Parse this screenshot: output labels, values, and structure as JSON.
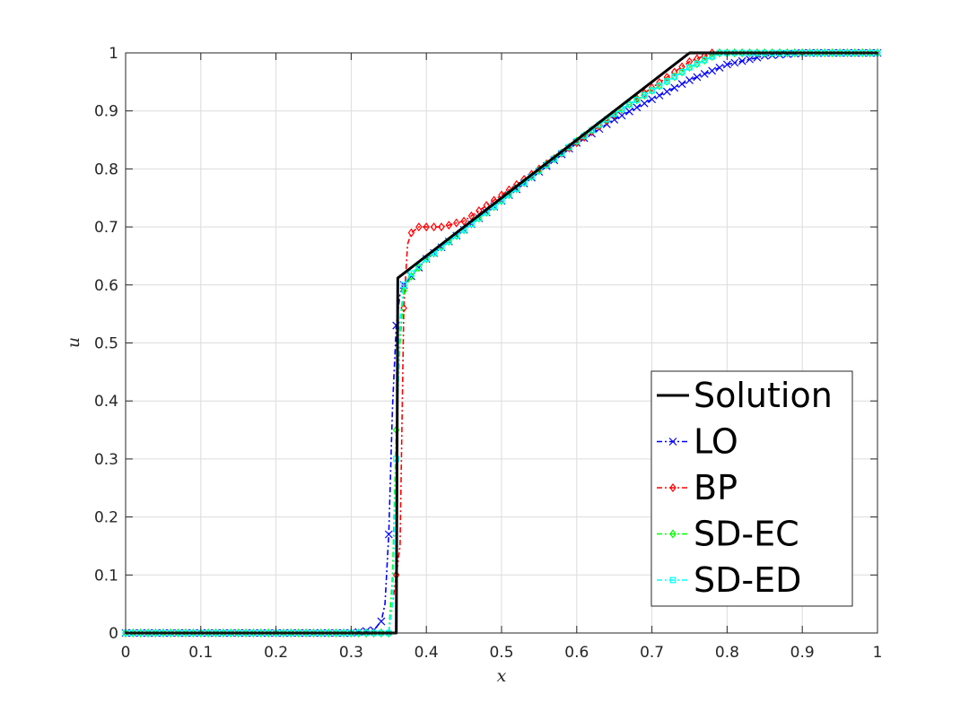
{
  "chart_data": {
    "type": "line",
    "xlabel": "x",
    "ylabel": "u",
    "xlim": [
      0,
      1
    ],
    "ylim": [
      0,
      1
    ],
    "xticks": [
      "0",
      "0.1",
      "0.2",
      "0.3",
      "0.4",
      "0.5",
      "0.6",
      "0.7",
      "0.8",
      "0.9",
      "1"
    ],
    "yticks": [
      "0",
      "0.1",
      "0.2",
      "0.3",
      "0.4",
      "0.5",
      "0.6",
      "0.7",
      "0.8",
      "0.9",
      "1"
    ],
    "grid": true,
    "legend_position": "bottom-right",
    "series": [
      {
        "name": "Solution",
        "color": "#000000",
        "line": "solid",
        "marker": "none",
        "x": [
          0,
          0.36,
          0.362,
          0.75,
          1
        ],
        "y": [
          0,
          0,
          0.612,
          1,
          1
        ]
      },
      {
        "name": "LO",
        "color": "#0000ff",
        "line": "dash-dot",
        "marker": "x",
        "x": [
          0,
          0.3,
          0.33,
          0.34,
          0.345,
          0.35,
          0.355,
          0.36,
          0.365,
          0.37,
          0.38,
          0.39,
          0.4,
          0.45,
          0.5,
          0.55,
          0.6,
          0.65,
          0.7,
          0.75,
          0.8,
          0.85,
          0.9,
          0.95,
          1
        ],
        "y": [
          0,
          0,
          0.005,
          0.02,
          0.05,
          0.17,
          0.39,
          0.53,
          0.585,
          0.6,
          0.615,
          0.63,
          0.645,
          0.695,
          0.745,
          0.795,
          0.845,
          0.885,
          0.92,
          0.953,
          0.98,
          0.995,
          1,
          1,
          1
        ]
      },
      {
        "name": "BP",
        "color": "#ff0000",
        "line": "dash-dot",
        "marker": "diamond",
        "x": [
          0,
          0.35,
          0.36,
          0.365,
          0.37,
          0.375,
          0.38,
          0.385,
          0.39,
          0.4,
          0.41,
          0.42,
          0.43,
          0.44,
          0.45,
          0.5,
          0.55,
          0.6,
          0.65,
          0.7,
          0.75,
          0.78,
          0.8,
          0.85,
          0.9,
          1
        ],
        "y": [
          0,
          0,
          0.1,
          0.15,
          0.56,
          0.67,
          0.69,
          0.695,
          0.7,
          0.7,
          0.7,
          0.7,
          0.703,
          0.707,
          0.71,
          0.755,
          0.8,
          0.845,
          0.893,
          0.94,
          0.985,
          1,
          1,
          1,
          1,
          1
        ]
      },
      {
        "name": "SD-EC",
        "color": "#00ff00",
        "line": "dash-dot",
        "marker": "diamond",
        "x": [
          0,
          0.35,
          0.355,
          0.36,
          0.365,
          0.37,
          0.38,
          0.39,
          0.4,
          0.45,
          0.5,
          0.55,
          0.6,
          0.65,
          0.7,
          0.75,
          0.79,
          0.8,
          0.85,
          0.9,
          1
        ],
        "y": [
          0,
          0,
          0.1,
          0.35,
          0.5,
          0.59,
          0.615,
          0.63,
          0.645,
          0.695,
          0.745,
          0.797,
          0.848,
          0.895,
          0.935,
          0.975,
          1,
          1,
          1,
          1,
          1
        ]
      },
      {
        "name": "SD-ED",
        "color": "#00ffff",
        "line": "dash-dot",
        "marker": "square",
        "x": [
          0,
          0.35,
          0.355,
          0.36,
          0.365,
          0.37,
          0.38,
          0.39,
          0.4,
          0.45,
          0.5,
          0.55,
          0.6,
          0.65,
          0.7,
          0.75,
          0.79,
          0.8,
          0.85,
          0.9,
          1
        ],
        "y": [
          0,
          0,
          0.05,
          0.3,
          0.54,
          0.6,
          0.62,
          0.632,
          0.645,
          0.695,
          0.745,
          0.797,
          0.848,
          0.895,
          0.935,
          0.975,
          1,
          1,
          1,
          1,
          1
        ]
      }
    ]
  }
}
